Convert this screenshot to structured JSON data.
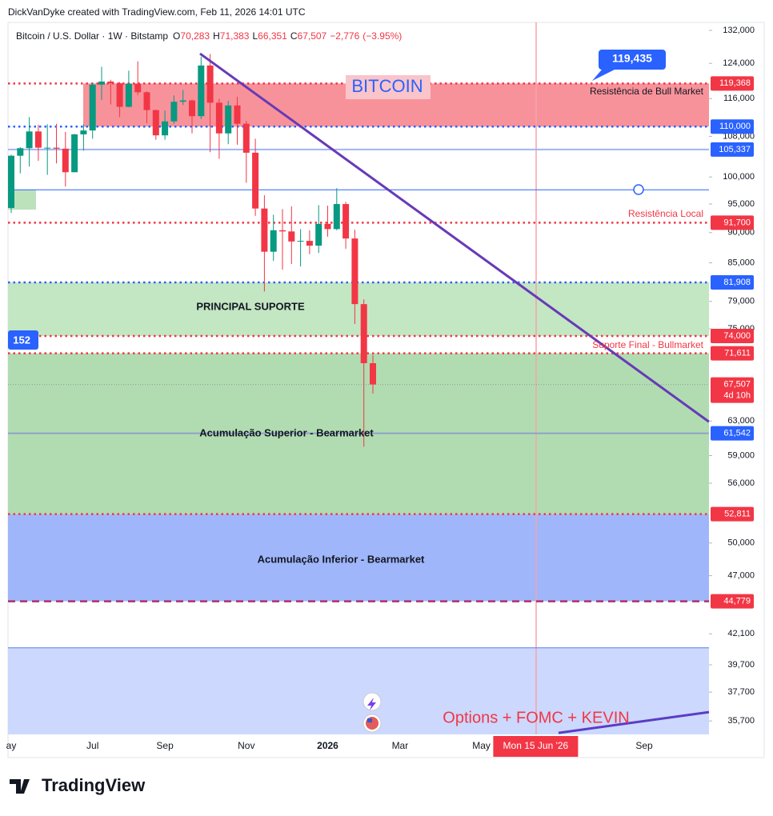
{
  "header": "DickVanDyke created with TradingView.com, Feb 11, 2026 14:01 UTC",
  "footer": {
    "brand": "TradingView"
  },
  "chart_data": {
    "type": "candlestick",
    "symbol": "Bitcoin / U.S. Dollar · 1W · Bitstamp",
    "legend": [
      {
        "key": "O",
        "value": {
          "value": 70283,
          "label": "70,283"
        }
      },
      {
        "key": "H",
        "value": {
          "value": 71383,
          "label": "71,383"
        }
      },
      {
        "key": "L",
        "value": {
          "value": 66351,
          "label": "66,351"
        }
      },
      {
        "key": "C",
        "value": {
          "value": 67507,
          "label": "67,507"
        }
      }
    ],
    "change": {
      "value": -2776,
      "label": "−2,776"
    },
    "change_percent": {
      "value": -3.95,
      "label": "(−3.95%)"
    },
    "log_scale": true,
    "up_color": "#089981",
    "down_color": "#f23645",
    "ylim": [
      34800,
      134000
    ],
    "yticks": [
      {
        "value": 132000,
        "label": "132,000"
      },
      {
        "value": 124000,
        "label": "124,000"
      },
      {
        "value": 116000,
        "label": "116,000"
      },
      {
        "value": 108000,
        "label": "108,000"
      },
      {
        "value": 100000,
        "label": "100,000"
      },
      {
        "value": 95000,
        "label": "95,000"
      },
      {
        "value": 90000,
        "label": "90,000"
      },
      {
        "value": 85000,
        "label": "85,000"
      },
      {
        "value": 79000,
        "label": "79,000"
      },
      {
        "value": 75000,
        "label": "75,000"
      },
      {
        "value": 63000,
        "label": "63,000"
      },
      {
        "value": 59000,
        "label": "59,000"
      },
      {
        "value": 56000,
        "label": "56,000"
      },
      {
        "value": 50000,
        "label": "50,000"
      },
      {
        "value": 47000,
        "label": "47,000"
      },
      {
        "value": 42100,
        "label": "42,100"
      },
      {
        "value": 39700,
        "label": "39,700"
      },
      {
        "value": 37700,
        "label": "37,700"
      },
      {
        "value": 35700,
        "label": "35,700"
      }
    ],
    "categories": [
      "ay",
      null,
      null,
      null,
      null,
      null,
      null,
      null,
      null,
      "Jul",
      null,
      null,
      null,
      null,
      null,
      null,
      null,
      "Sep",
      null,
      null,
      null,
      null,
      null,
      null,
      null,
      null,
      "Nov",
      null,
      null,
      null,
      null,
      null,
      null,
      null,
      null,
      "2026",
      null,
      null,
      null,
      null,
      null,
      null,
      null,
      "Mar",
      null,
      null,
      null,
      null,
      null,
      null,
      null,
      null,
      "May",
      null,
      null,
      null,
      null,
      null,
      "Mon 15 Jun '26",
      null,
      null,
      null,
      null,
      null,
      null,
      null,
      null,
      null,
      null,
      null,
      "Sep",
      null,
      null,
      null,
      null,
      null,
      null,
      null
    ],
    "open": [
      94300,
      104100,
      105600,
      109000,
      105700,
      105700,
      105500,
      100900,
      108400,
      109200,
      119100,
      119800,
      119400,
      114200,
      119300,
      117400,
      113500,
      108200,
      111100,
      115300,
      115600,
      112200,
      123500,
      115100,
      108600,
      114500,
      110600,
      104700,
      94200,
      86800,
      90400,
      90200,
      88500,
      88600,
      87800,
      91500,
      90600,
      95000,
      89000,
      78600,
      70283,
      null,
      null,
      null,
      null,
      null,
      null,
      null,
      null,
      null,
      null,
      null,
      null,
      null,
      null,
      null,
      null,
      null,
      null,
      null,
      null,
      null,
      null,
      null,
      null,
      null,
      null,
      null,
      null,
      null,
      null,
      null,
      null,
      null,
      null,
      null,
      null,
      null
    ],
    "high": [
      104300,
      105800,
      112000,
      110400,
      110500,
      110600,
      108900,
      108500,
      110500,
      119500,
      123200,
      120200,
      119700,
      122300,
      124500,
      117600,
      113600,
      113400,
      116700,
      117900,
      115800,
      125600,
      126200,
      116000,
      115500,
      116400,
      111200,
      107500,
      96600,
      93100,
      94100,
      94600,
      90600,
      90400,
      94800,
      94700,
      97900,
      95400,
      90500,
      79300,
      71383,
      null,
      null,
      null,
      null,
      null,
      null,
      null,
      null,
      null,
      null,
      null,
      null,
      null,
      null,
      null,
      null,
      null,
      null,
      null,
      null,
      null,
      null,
      null,
      null,
      null,
      null,
      null,
      null,
      null,
      null,
      null,
      null,
      null,
      null,
      null,
      null,
      null
    ],
    "low": [
      93400,
      100700,
      102000,
      103100,
      100400,
      102600,
      98200,
      100900,
      105100,
      107500,
      115700,
      114700,
      112000,
      114100,
      116800,
      110700,
      107300,
      107300,
      110600,
      114600,
      108600,
      111600,
      104800,
      103500,
      106400,
      106300,
      98900,
      92900,
      80500,
      85300,
      83900,
      84800,
      84400,
      86400,
      86600,
      89300,
      90400,
      87300,
      75700,
      60000,
      66351,
      null,
      null,
      null,
      null,
      null,
      null,
      null,
      null,
      null,
      null,
      null,
      null,
      null,
      null,
      null,
      null,
      null,
      null,
      null,
      null,
      null,
      null,
      null,
      null,
      null,
      null,
      null,
      null,
      null,
      null,
      null,
      null,
      null,
      null,
      null,
      null,
      null
    ],
    "close": [
      104100,
      105600,
      109000,
      105700,
      105700,
      105500,
      100900,
      108400,
      109200,
      119100,
      119800,
      119400,
      114200,
      119300,
      117400,
      113500,
      108200,
      111100,
      115300,
      115600,
      112200,
      123500,
      115100,
      108600,
      114500,
      110600,
      104700,
      94200,
      86800,
      90400,
      90200,
      88500,
      88600,
      87800,
      91500,
      90600,
      95000,
      89000,
      78600,
      70283,
      67507,
      null,
      null,
      null,
      null,
      null,
      null,
      null,
      null,
      null,
      null,
      null,
      null,
      null,
      null,
      null,
      null,
      null,
      null,
      null,
      null,
      null,
      null,
      null,
      null,
      null,
      null,
      null,
      null,
      null,
      null,
      null,
      null,
      null,
      null,
      null,
      null,
      null
    ],
    "zones": [
      {
        "from": 110000,
        "to": 119368,
        "color": "#f7868f"
      },
      {
        "from": 94000,
        "to": 97600,
        "color": "#b5dfb5"
      },
      {
        "from": 74000,
        "to": 81908,
        "color": "#bde3bd"
      },
      {
        "from": 52811,
        "to": 71611,
        "color": "#a8d8a8"
      },
      {
        "from": 44779,
        "to": 52811,
        "color": "#96aefa"
      },
      {
        "from": 34800,
        "to": 41000,
        "color": "#c6d4fd"
      }
    ],
    "levels": [
      {
        "value": 119368,
        "label": "119,368",
        "color": "#f23645",
        "style": "dotted"
      },
      {
        "value": 110000,
        "label": "110,000",
        "color": "#2962ff",
        "style": "dotted"
      },
      {
        "value": 105337,
        "label": "105,337",
        "color": "#2962ff",
        "line_color": "#9fb4f7",
        "style": "solid"
      },
      {
        "value": 97600,
        "color": "#2962ff",
        "style": "thin"
      },
      {
        "value": 91700,
        "label": "91,700",
        "color": "#f23645",
        "style": "dotted"
      },
      {
        "value": 81908,
        "label": "81,908",
        "color": "#2962ff",
        "style": "dotted"
      },
      {
        "value": 74000,
        "label": "74,000",
        "color": "#f23645",
        "style": "dotted"
      },
      {
        "value": 71611,
        "label": "71,611",
        "color": "#f23645",
        "style": "dotted"
      },
      {
        "value": 67507,
        "label": "67,507",
        "countdown": "4d 10h",
        "color": "#f23645",
        "line_color": "#9598a1",
        "style": "current"
      },
      {
        "value": 61542,
        "label": "61,542",
        "color": "#2962ff",
        "line_color": "#8fa2c9",
        "style": "solid"
      },
      {
        "value": 52811,
        "label": "52,811",
        "color": "#f23645",
        "style": "dotted"
      },
      {
        "value": 44779,
        "label": "44,779",
        "color": "#f23645",
        "line_color": "#b0306a",
        "style": "dashed"
      },
      {
        "value": 41000,
        "color": "#5b7cf0",
        "style": "thin"
      }
    ],
    "trendlines": [
      {
        "values": [
          126300,
          62900
        ],
        "color": "#673ab7"
      },
      {
        "values": [
          34900,
          36300
        ],
        "color": "#5b3cc4"
      }
    ],
    "annotations": {
      "title": "BITCOIN",
      "bull_resistance": "Resistência de Bull Market",
      "local_resistance": "Resistência Local",
      "main_support": "PRINCIPAL SUPORTE",
      "final_support": "Suporte Final - Bullmarket",
      "upper_accumulation": "Acumulação Superior - Bearmarket",
      "lower_accumulation": "Acumulação Inferior - Bearmarket",
      "event": "Options + FOMC + KEVIN",
      "callout": {
        "value": 119435,
        "label": "119,435"
      },
      "left_tag": "152"
    }
  }
}
